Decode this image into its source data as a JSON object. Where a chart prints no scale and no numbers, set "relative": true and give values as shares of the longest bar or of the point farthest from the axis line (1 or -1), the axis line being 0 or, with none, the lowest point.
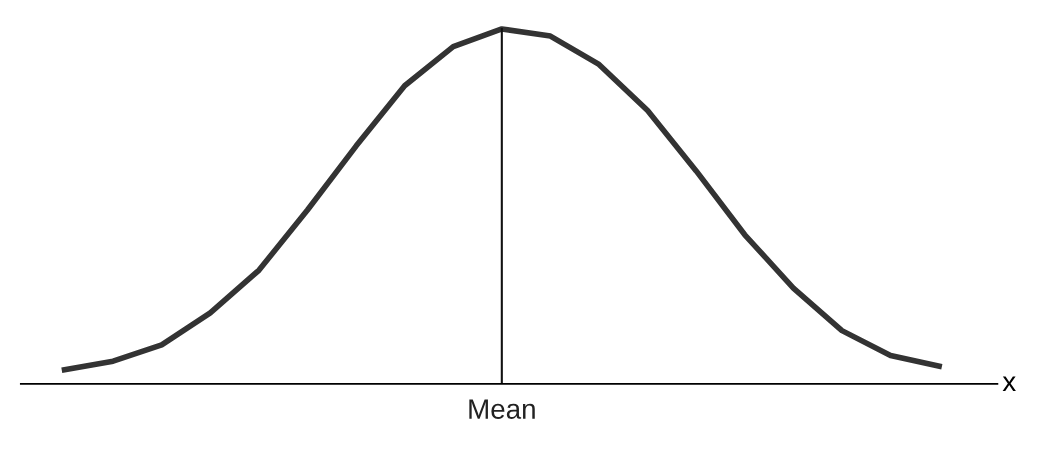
{
  "chart_data": {
    "type": "line",
    "relative": true,
    "xlabel": "x",
    "categories": [
      null,
      null,
      null,
      null,
      null,
      null,
      null,
      null,
      null,
      null,
      null,
      null,
      null,
      null,
      null,
      null,
      null,
      null,
      null
    ],
    "series": [
      {
        "color": "#333333",
        "values": [
          0.04,
          0.064,
          0.11,
          0.2,
          0.32,
          0.49,
          0.67,
          0.84,
          0.95,
          1.0,
          0.98,
          0.9,
          0.77,
          0.6,
          0.42,
          0.27,
          0.15,
          0.08,
          0.05
        ]
      }
    ],
    "annotations": [
      "Mean"
    ],
    "legend": false,
    "marker": "none",
    "line_style": "solid"
  }
}
